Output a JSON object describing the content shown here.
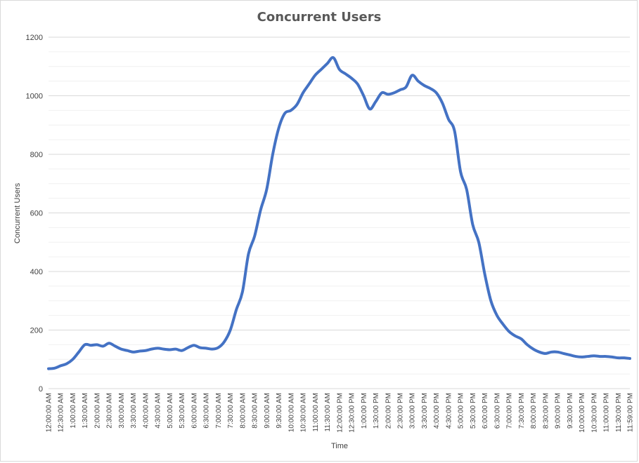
{
  "chart_data": {
    "type": "line",
    "title": "Concurrent  Users",
    "xlabel": "Time",
    "ylabel": "Concurrent Users",
    "ylim": [
      0,
      1200
    ],
    "yticks": [
      "0",
      "200",
      "400",
      "600",
      "800",
      "1000",
      "1200"
    ],
    "minor_gridlines": true,
    "legend": "none",
    "x_tick_labels": [
      "12:00:00 AM",
      "12:30:00 AM",
      "1:00:00 AM",
      "1:30:00 AM",
      "2:00:00 AM",
      "2:30:00 AM",
      "3:00:00 AM",
      "3:30:00 AM",
      "4:00:00 AM",
      "4:30:00 AM",
      "5:00:00 AM",
      "5:30:00 AM",
      "6:00:00 AM",
      "6:30:00 AM",
      "7:00:00 AM",
      "7:30:00 AM",
      "8:00:00 AM",
      "8:30:00 AM",
      "9:00:00 AM",
      "9:30:00 AM",
      "10:00:00 AM",
      "10:30:00 AM",
      "11:00:00 AM",
      "11:30:00 AM",
      "12:00:00 PM",
      "12:30:00 PM",
      "1:00:00 PM",
      "1:30:00 PM",
      "2:00:00 PM",
      "2:30:00 PM",
      "3:00:00 PM",
      "3:30:00 PM",
      "4:00:00 PM",
      "4:30:00 PM",
      "5:00:00 PM",
      "5:30:00 PM",
      "6:00:00 PM",
      "6:30:00 PM",
      "7:00:00 PM",
      "7:30:00 PM",
      "8:00:00 PM",
      "8:30:00 PM",
      "9:00:00 PM",
      "9:30:00 PM",
      "10:00:00 PM",
      "10:30:00 PM",
      "11:00:00 PM",
      "11:30:00 PM",
      "11:59:00 PM"
    ],
    "series": [
      {
        "color": "#4472c4",
        "x": [
          "12:00:00 AM",
          "12:15:00 AM",
          "12:30:00 AM",
          "12:45:00 AM",
          "1:00:00 AM",
          "1:15:00 AM",
          "1:30:00 AM",
          "1:45:00 AM",
          "2:00:00 AM",
          "2:15:00 AM",
          "2:30:00 AM",
          "2:45:00 AM",
          "3:00:00 AM",
          "3:15:00 AM",
          "3:30:00 AM",
          "3:45:00 AM",
          "4:00:00 AM",
          "4:15:00 AM",
          "4:30:00 AM",
          "4:45:00 AM",
          "5:00:00 AM",
          "5:15:00 AM",
          "5:30:00 AM",
          "5:45:00 AM",
          "6:00:00 AM",
          "6:15:00 AM",
          "6:30:00 AM",
          "6:45:00 AM",
          "7:00:00 AM",
          "7:15:00 AM",
          "7:30:00 AM",
          "7:45:00 AM",
          "8:00:00 AM",
          "8:15:00 AM",
          "8:30:00 AM",
          "8:45:00 AM",
          "9:00:00 AM",
          "9:15:00 AM",
          "9:30:00 AM",
          "9:45:00 AM",
          "10:00:00 AM",
          "10:15:00 AM",
          "10:30:00 AM",
          "10:45:00 AM",
          "11:00:00 AM",
          "11:15:00 AM",
          "11:30:00 AM",
          "11:45:00 AM",
          "12:00:00 PM",
          "12:15:00 PM",
          "12:30:00 PM",
          "12:45:00 PM",
          "1:00:00 PM",
          "1:15:00 PM",
          "1:30:00 PM",
          "1:45:00 PM",
          "2:00:00 PM",
          "2:15:00 PM",
          "2:30:00 PM",
          "2:45:00 PM",
          "3:00:00 PM",
          "3:15:00 PM",
          "3:30:00 PM",
          "3:45:00 PM",
          "4:00:00 PM",
          "4:15:00 PM",
          "4:30:00 PM",
          "4:45:00 PM",
          "5:00:00 PM",
          "5:15:00 PM",
          "5:30:00 PM",
          "5:45:00 PM",
          "6:00:00 PM",
          "6:15:00 PM",
          "6:30:00 PM",
          "6:45:00 PM",
          "7:00:00 PM",
          "7:15:00 PM",
          "7:30:00 PM",
          "7:45:00 PM",
          "8:00:00 PM",
          "8:15:00 PM",
          "8:30:00 PM",
          "8:45:00 PM",
          "9:00:00 PM",
          "9:15:00 PM",
          "9:30:00 PM",
          "9:45:00 PM",
          "10:00:00 PM",
          "10:15:00 PM",
          "10:30:00 PM",
          "10:45:00 PM",
          "11:00:00 PM",
          "11:15:00 PM",
          "11:30:00 PM",
          "11:45:00 PM",
          "11:59:00 PM"
        ],
        "values": [
          68,
          70,
          78,
          85,
          100,
          125,
          150,
          148,
          150,
          145,
          155,
          145,
          135,
          130,
          125,
          128,
          130,
          135,
          138,
          135,
          133,
          135,
          130,
          140,
          148,
          140,
          138,
          135,
          140,
          160,
          200,
          270,
          330,
          460,
          520,
          610,
          680,
          800,
          890,
          940,
          950,
          970,
          1010,
          1040,
          1070,
          1090,
          1110,
          1130,
          1090,
          1075,
          1060,
          1040,
          1000,
          955,
          980,
          1010,
          1005,
          1010,
          1020,
          1030,
          1070,
          1050,
          1035,
          1025,
          1010,
          975,
          920,
          880,
          740,
          680,
          560,
          500,
          390,
          300,
          250,
          220,
          195,
          180,
          170,
          150,
          135,
          125,
          120,
          125,
          125,
          120,
          115,
          110,
          108,
          110,
          112,
          110,
          110,
          108,
          105,
          105,
          103
        ]
      }
    ]
  }
}
